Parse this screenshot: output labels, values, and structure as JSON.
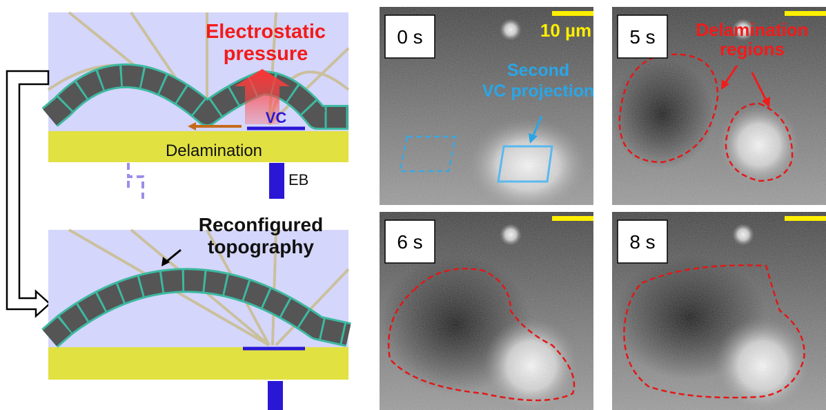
{
  "left_diagram": {
    "top": {
      "label_lines": [
        "Electrostatic",
        "pressure"
      ],
      "vc": "VC",
      "delamination": "Delamination",
      "eb": "EB"
    },
    "bottom": {
      "label_lines": [
        "Reconfigured",
        "topography"
      ]
    }
  },
  "images": [
    {
      "time": "0 s",
      "scale_bar": "10 µm",
      "annotation_lines": [
        "Second",
        "VC projection"
      ]
    },
    {
      "time": "5 s",
      "annotation_lines": [
        "Delamination",
        "regions"
      ]
    },
    {
      "time": "6 s"
    },
    {
      "time": "8 s"
    }
  ]
}
